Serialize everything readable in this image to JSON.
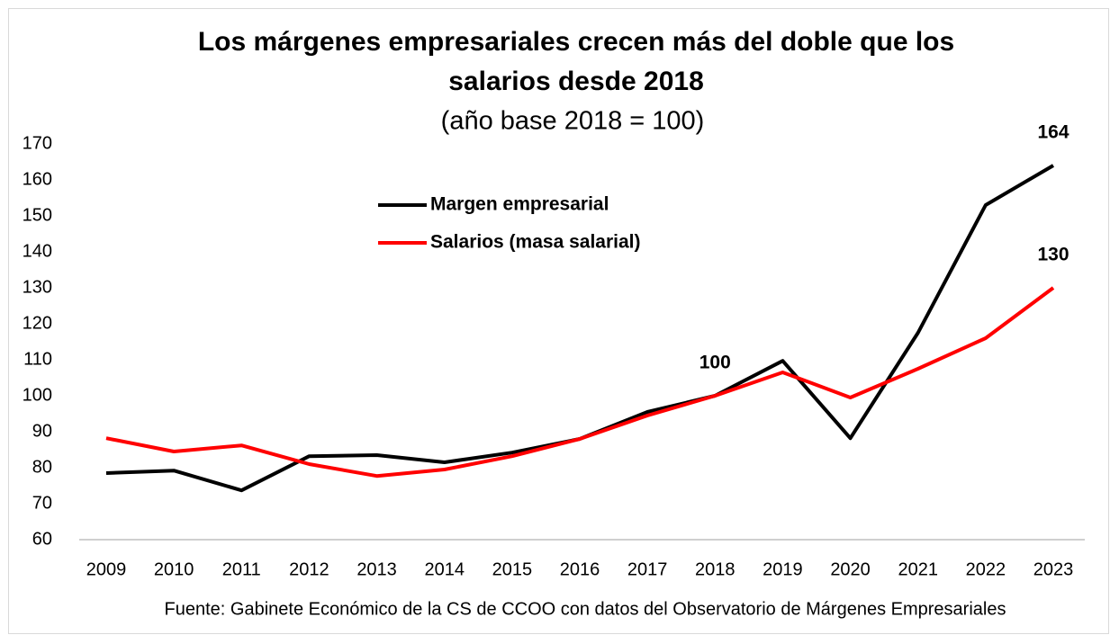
{
  "chart_data": {
    "type": "line",
    "title": [
      "Los márgenes empresariales crecen más del doble que los",
      "salarios desde 2018"
    ],
    "subtitle": "(año base 2018 = 100)",
    "source": "Fuente: Gabinete Económico de la CS de CCOO con datos del Observatorio de Márgenes Empresariales",
    "categories": [
      "2009",
      "2010",
      "2011",
      "2012",
      "2013",
      "2014",
      "2015",
      "2016",
      "2017",
      "2018",
      "2019",
      "2020",
      "2021",
      "2022",
      "2023"
    ],
    "series": [
      {
        "name": "Margen empresarial",
        "color": "#000000",
        "values": [
          78.5,
          79.2,
          73.7,
          83.2,
          83.5,
          81.5,
          84.2,
          88,
          95.5,
          100,
          109.7,
          88.2,
          117.5,
          153,
          164
        ],
        "value_labels": [
          null,
          null,
          null,
          null,
          null,
          null,
          null,
          null,
          null,
          "100",
          null,
          null,
          null,
          null,
          "164"
        ]
      },
      {
        "name": "Salarios (masa salarial)",
        "color": "#ff0000",
        "values": [
          88.2,
          84.5,
          86.2,
          81,
          77.7,
          79.5,
          83.2,
          88,
          94.5,
          100,
          106.5,
          99.5,
          107.5,
          116,
          130
        ],
        "value_labels": [
          null,
          null,
          null,
          null,
          null,
          null,
          null,
          null,
          null,
          null,
          null,
          null,
          null,
          null,
          "130"
        ]
      }
    ],
    "ylim": [
      60,
      170
    ],
    "yticks": [
      60,
      70,
      80,
      90,
      100,
      110,
      120,
      130,
      140,
      150,
      160,
      170
    ],
    "grid": false,
    "legend": "top-center"
  }
}
